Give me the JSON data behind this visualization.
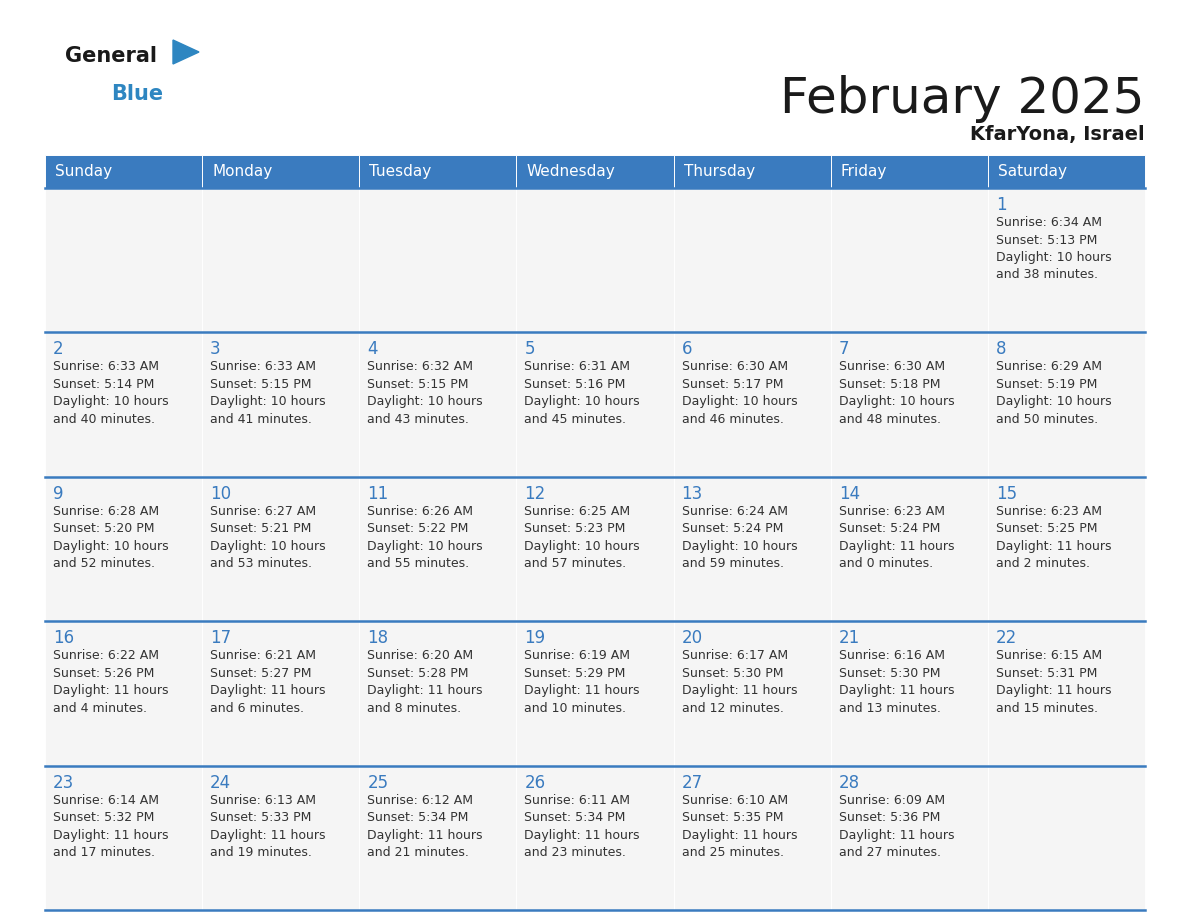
{
  "title": "February 2025",
  "subtitle": "KfarYona, Israel",
  "header_color": "#3a7bbf",
  "header_text_color": "#ffffff",
  "cell_bg_color": "#f5f5f5",
  "cell_border_color": "#ffffff",
  "row_border_color": "#3a7bbf",
  "title_color": "#1a1a1a",
  "day_number_color": "#3a7bbf",
  "cell_text_color": "#333333",
  "days_of_week": [
    "Sunday",
    "Monday",
    "Tuesday",
    "Wednesday",
    "Thursday",
    "Friday",
    "Saturday"
  ],
  "weeks": [
    [
      {
        "day": null,
        "info": null
      },
      {
        "day": null,
        "info": null
      },
      {
        "day": null,
        "info": null
      },
      {
        "day": null,
        "info": null
      },
      {
        "day": null,
        "info": null
      },
      {
        "day": null,
        "info": null
      },
      {
        "day": 1,
        "info": "Sunrise: 6:34 AM\nSunset: 5:13 PM\nDaylight: 10 hours\nand 38 minutes."
      }
    ],
    [
      {
        "day": 2,
        "info": "Sunrise: 6:33 AM\nSunset: 5:14 PM\nDaylight: 10 hours\nand 40 minutes."
      },
      {
        "day": 3,
        "info": "Sunrise: 6:33 AM\nSunset: 5:15 PM\nDaylight: 10 hours\nand 41 minutes."
      },
      {
        "day": 4,
        "info": "Sunrise: 6:32 AM\nSunset: 5:15 PM\nDaylight: 10 hours\nand 43 minutes."
      },
      {
        "day": 5,
        "info": "Sunrise: 6:31 AM\nSunset: 5:16 PM\nDaylight: 10 hours\nand 45 minutes."
      },
      {
        "day": 6,
        "info": "Sunrise: 6:30 AM\nSunset: 5:17 PM\nDaylight: 10 hours\nand 46 minutes."
      },
      {
        "day": 7,
        "info": "Sunrise: 6:30 AM\nSunset: 5:18 PM\nDaylight: 10 hours\nand 48 minutes."
      },
      {
        "day": 8,
        "info": "Sunrise: 6:29 AM\nSunset: 5:19 PM\nDaylight: 10 hours\nand 50 minutes."
      }
    ],
    [
      {
        "day": 9,
        "info": "Sunrise: 6:28 AM\nSunset: 5:20 PM\nDaylight: 10 hours\nand 52 minutes."
      },
      {
        "day": 10,
        "info": "Sunrise: 6:27 AM\nSunset: 5:21 PM\nDaylight: 10 hours\nand 53 minutes."
      },
      {
        "day": 11,
        "info": "Sunrise: 6:26 AM\nSunset: 5:22 PM\nDaylight: 10 hours\nand 55 minutes."
      },
      {
        "day": 12,
        "info": "Sunrise: 6:25 AM\nSunset: 5:23 PM\nDaylight: 10 hours\nand 57 minutes."
      },
      {
        "day": 13,
        "info": "Sunrise: 6:24 AM\nSunset: 5:24 PM\nDaylight: 10 hours\nand 59 minutes."
      },
      {
        "day": 14,
        "info": "Sunrise: 6:23 AM\nSunset: 5:24 PM\nDaylight: 11 hours\nand 0 minutes."
      },
      {
        "day": 15,
        "info": "Sunrise: 6:23 AM\nSunset: 5:25 PM\nDaylight: 11 hours\nand 2 minutes."
      }
    ],
    [
      {
        "day": 16,
        "info": "Sunrise: 6:22 AM\nSunset: 5:26 PM\nDaylight: 11 hours\nand 4 minutes."
      },
      {
        "day": 17,
        "info": "Sunrise: 6:21 AM\nSunset: 5:27 PM\nDaylight: 11 hours\nand 6 minutes."
      },
      {
        "day": 18,
        "info": "Sunrise: 6:20 AM\nSunset: 5:28 PM\nDaylight: 11 hours\nand 8 minutes."
      },
      {
        "day": 19,
        "info": "Sunrise: 6:19 AM\nSunset: 5:29 PM\nDaylight: 11 hours\nand 10 minutes."
      },
      {
        "day": 20,
        "info": "Sunrise: 6:17 AM\nSunset: 5:30 PM\nDaylight: 11 hours\nand 12 minutes."
      },
      {
        "day": 21,
        "info": "Sunrise: 6:16 AM\nSunset: 5:30 PM\nDaylight: 11 hours\nand 13 minutes."
      },
      {
        "day": 22,
        "info": "Sunrise: 6:15 AM\nSunset: 5:31 PM\nDaylight: 11 hours\nand 15 minutes."
      }
    ],
    [
      {
        "day": 23,
        "info": "Sunrise: 6:14 AM\nSunset: 5:32 PM\nDaylight: 11 hours\nand 17 minutes."
      },
      {
        "day": 24,
        "info": "Sunrise: 6:13 AM\nSunset: 5:33 PM\nDaylight: 11 hours\nand 19 minutes."
      },
      {
        "day": 25,
        "info": "Sunrise: 6:12 AM\nSunset: 5:34 PM\nDaylight: 11 hours\nand 21 minutes."
      },
      {
        "day": 26,
        "info": "Sunrise: 6:11 AM\nSunset: 5:34 PM\nDaylight: 11 hours\nand 23 minutes."
      },
      {
        "day": 27,
        "info": "Sunrise: 6:10 AM\nSunset: 5:35 PM\nDaylight: 11 hours\nand 25 minutes."
      },
      {
        "day": 28,
        "info": "Sunrise: 6:09 AM\nSunset: 5:36 PM\nDaylight: 11 hours\nand 27 minutes."
      },
      {
        "day": null,
        "info": null
      }
    ]
  ],
  "logo_general_color": "#1a1a1a",
  "logo_blue_color": "#2e86c1",
  "logo_triangle_color": "#2e86c1",
  "title_fontsize": 36,
  "subtitle_fontsize": 14,
  "header_fontsize": 11,
  "day_num_fontsize": 12,
  "cell_text_fontsize": 9
}
